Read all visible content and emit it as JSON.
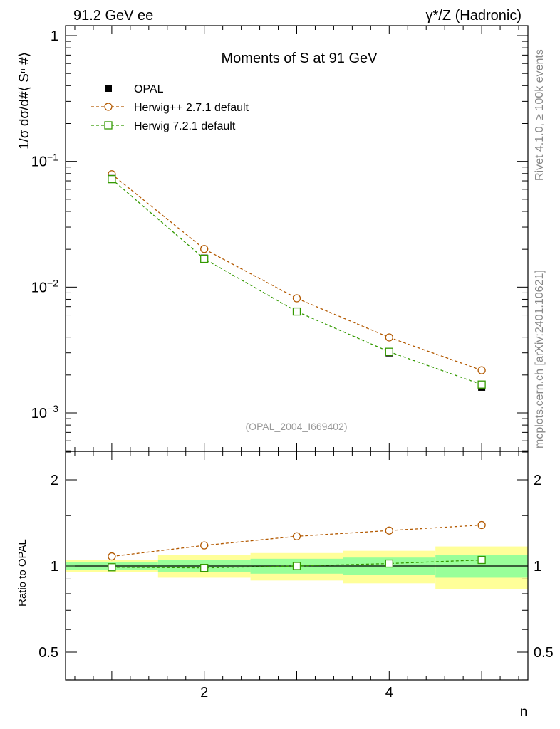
{
  "header": {
    "left": "91.2 GeV ee",
    "right": "γ*/Z (Hadronic)"
  },
  "side_texts": {
    "rivet": "Rivet 4.1.0, ≥ 100k events",
    "mcplots": "mcplots.cern.ch [arXiv:2401.10621]"
  },
  "main_ylabel": "1/σ  dσ/d#⟨ Sⁿ #⟩",
  "ratio_ylabel": "Ratio to OPAL",
  "xlabel": "n",
  "colors": {
    "opal": "#000000",
    "herwigpp": "#b35900",
    "herwig7": "#339900",
    "band_inner": "#99ff99",
    "band_outer": "#ffff99"
  },
  "chart_data": [
    {
      "type": "scatter",
      "title": "Moments of S at 91 GeV",
      "subtitle": "(OPAL_2004_I669402)",
      "yscale": "log",
      "xlim": [
        0.5,
        5.5
      ],
      "ylim": [
        0.0005,
        1.2
      ],
      "x_ticks": [
        2,
        4
      ],
      "y_ticks": [
        {
          "value": 1,
          "label": "1"
        },
        {
          "value": 0.1,
          "label": "10⁻¹"
        },
        {
          "value": 0.01,
          "label": "10⁻²"
        },
        {
          "value": 0.001,
          "label": "10⁻³"
        }
      ],
      "x": [
        1,
        2,
        3,
        4,
        5
      ],
      "series": [
        {
          "name": "OPAL",
          "marker": "square-filled",
          "values": [
            0.073,
            0.017,
            0.0064,
            0.003,
            0.0016
          ]
        },
        {
          "name": "Herwig++ 2.7.1 default",
          "marker": "circle-open",
          "line": "dashed",
          "values": [
            0.079,
            0.0201,
            0.00815,
            0.00398,
            0.00218
          ]
        },
        {
          "name": "Herwig 7.2.1 default",
          "marker": "square-open",
          "line": "dashed",
          "values": [
            0.0722,
            0.0168,
            0.0064,
            0.00306,
            0.00168
          ]
        }
      ],
      "legend": "top-left"
    },
    {
      "type": "scatter",
      "title": "Ratio to OPAL",
      "yscale": "log",
      "xlim": [
        0.5,
        5.5
      ],
      "ylim": [
        0.4,
        2.5
      ],
      "x_ticks": [
        2,
        4
      ],
      "y_ticks": [
        {
          "value": 2,
          "label": "2"
        },
        {
          "value": 1,
          "label": "1"
        },
        {
          "value": 0.5,
          "label": "0.5"
        }
      ],
      "x": [
        1,
        2,
        3,
        4,
        5
      ],
      "band_inner": [
        [
          0.97,
          1.03
        ],
        [
          0.95,
          1.05
        ],
        [
          0.94,
          1.06
        ],
        [
          0.93,
          1.07
        ],
        [
          0.91,
          1.09
        ]
      ],
      "band_outer": [
        [
          0.95,
          1.05
        ],
        [
          0.91,
          1.09
        ],
        [
          0.89,
          1.11
        ],
        [
          0.87,
          1.13
        ],
        [
          0.83,
          1.17
        ]
      ],
      "series": [
        {
          "name": "Herwig++ 2.7.1 default",
          "marker": "circle-open",
          "line": "dashed",
          "values": [
            1.08,
            1.18,
            1.27,
            1.33,
            1.39
          ]
        },
        {
          "name": "Herwig 7.2.1 default",
          "marker": "square-open",
          "line": "dashed",
          "values": [
            0.99,
            0.985,
            1.0,
            1.02,
            1.05
          ]
        }
      ]
    }
  ]
}
